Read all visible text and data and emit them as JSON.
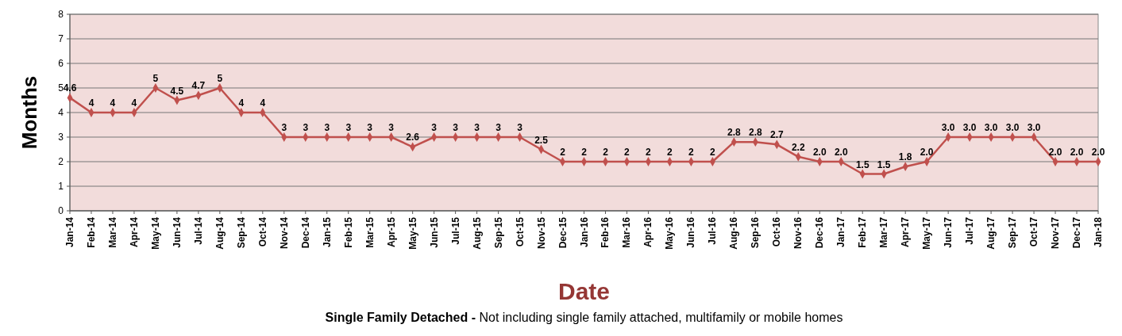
{
  "chart_data": {
    "type": "line",
    "xlabel": "Date",
    "ylabel": "Months",
    "categories": [
      "Jan-14",
      "Feb-14",
      "Mar-14",
      "Apr-14",
      "May-14",
      "Jun-14",
      "Jul-14",
      "Aug-14",
      "Sep-14",
      "Oct-14",
      "Nov-14",
      "Dec-14",
      "Jan-15",
      "Feb-15",
      "Mar-15",
      "Apr-15",
      "May-15",
      "Jun-15",
      "Jul-15",
      "Aug-15",
      "Sep-15",
      "Oct-15",
      "Nov-15",
      "Dec-15",
      "Jan-16",
      "Feb-16",
      "Mar-16",
      "Apr-16",
      "May-16",
      "Jun-16",
      "Jul-16",
      "Aug-16",
      "Sep-16",
      "Oct-16",
      "Nov-16",
      "Dec-16",
      "Jan-17",
      "Feb-17",
      "Mar-17",
      "Apr-17",
      "May-17",
      "Jun-17",
      "Jul-17",
      "Aug-17",
      "Sep-17",
      "Oct-17",
      "Nov-17",
      "Dec-17",
      "Jan-18"
    ],
    "series": [
      {
        "color": "#c0504d",
        "values": [
          4.6,
          4,
          4,
          4,
          5,
          4.5,
          4.7,
          5,
          4,
          4,
          3,
          3,
          3,
          3,
          3,
          3,
          2.6,
          3,
          3,
          3,
          3,
          3,
          2.5,
          2,
          2,
          2,
          2,
          2,
          2,
          2,
          2,
          2.8,
          2.8,
          2.7,
          2.2,
          2.0,
          2.0,
          1.5,
          1.5,
          1.8,
          2.0,
          3.0,
          3.0,
          3.0,
          3.0,
          3.0,
          2.0,
          2.0,
          2.0
        ],
        "value_labels": [
          "4.6",
          "4",
          "4",
          "4",
          "5",
          "4.5",
          "4.7",
          "5",
          "4",
          "4",
          "3",
          "3",
          "3",
          "3",
          "3",
          "3",
          "2.6",
          "3",
          "3",
          "3",
          "3",
          "3",
          "2.5",
          "2",
          "2",
          "2",
          "2",
          "2",
          "2",
          "2",
          "2",
          "2.8",
          "2.8",
          "2.7",
          "2.2",
          "2.0",
          "2.0",
          "1.5",
          "1.5",
          "1.8",
          "2.0",
          "3.0",
          "3.0",
          "3.0",
          "3.0",
          "3.0",
          "2.0",
          "2.0",
          "2.0"
        ]
      }
    ],
    "ylim": [
      0,
      8
    ],
    "yticks": [
      0,
      1,
      2,
      3,
      4,
      5,
      6,
      7,
      8
    ],
    "grid": "y",
    "marker": "diamond",
    "line_style": "solid",
    "annotations": [
      "Single Family  Detached -",
      "Not including single family attached, multifamily or mobile homes"
    ]
  }
}
